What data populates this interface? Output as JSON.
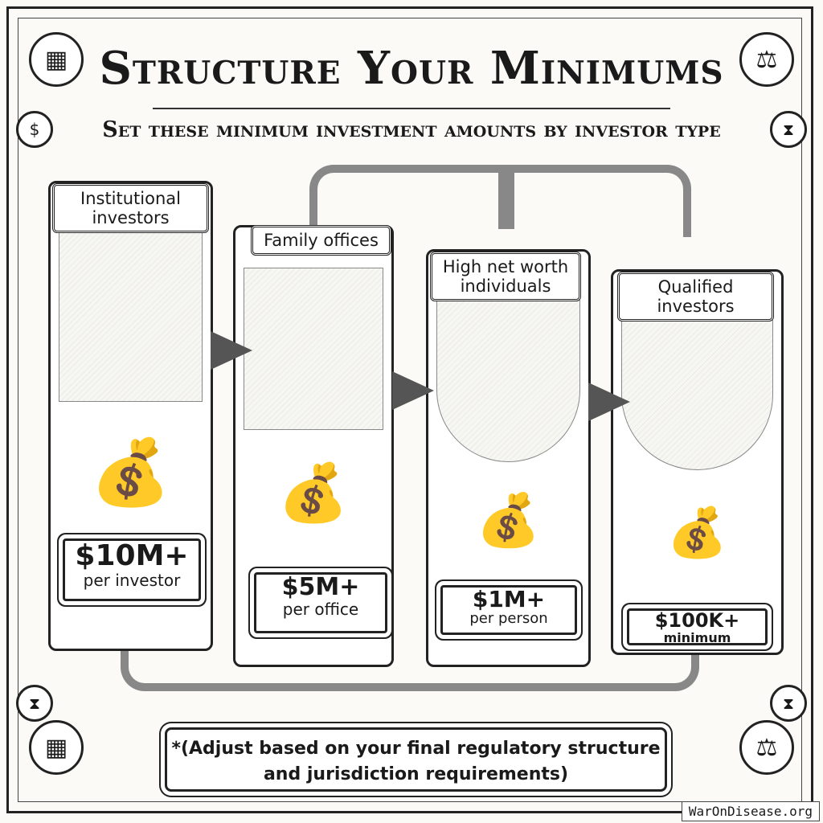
{
  "title": "Structure Your Minimums",
  "subtitle": "Set these minimum investment amounts by investor type",
  "investor_types": [
    {
      "label": "Institutional investors",
      "amount": "$10M+",
      "unit": "per investor"
    },
    {
      "label": "Family offices",
      "amount": "$5M+",
      "unit": "per office"
    },
    {
      "label": "High net worth individuals",
      "amount": "$1M+",
      "unit": "per person"
    },
    {
      "label": "Qualified investors",
      "amount": "$100K+",
      "unit": "minimum"
    }
  ],
  "footnote": "*(Adjust based on your final regulatory structure and jurisdiction requirements)",
  "watermark": "WarOnDisease.org",
  "icons": [
    "abacus-icon",
    "scales-icon",
    "hourglass-icon",
    "dollar-gear-icon",
    "money-bag-icon",
    "arrow-right-icon",
    "arrow-down-icon"
  ]
}
